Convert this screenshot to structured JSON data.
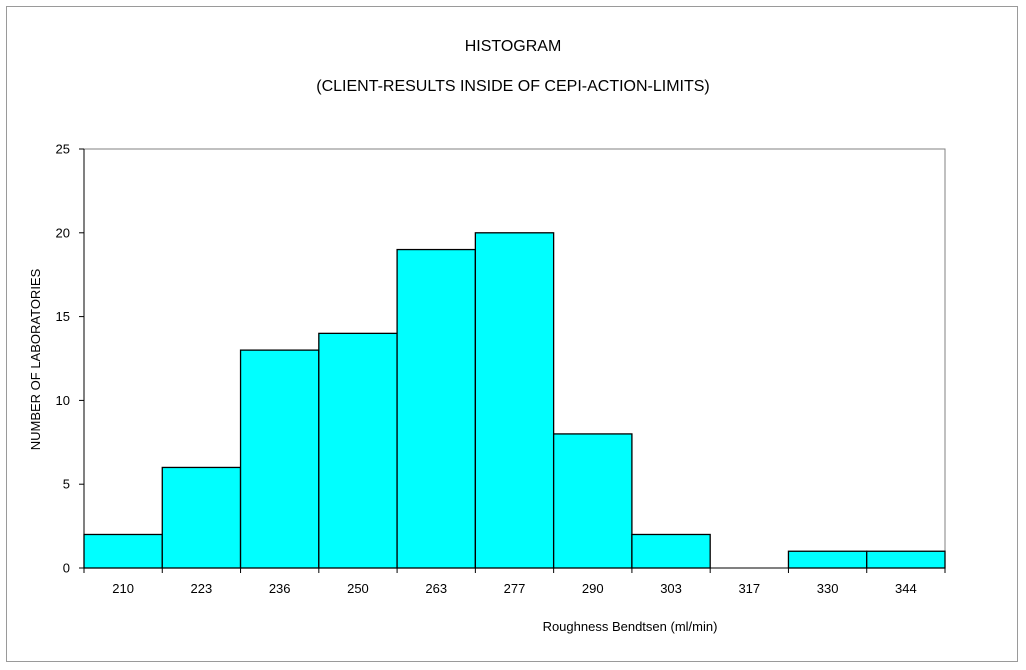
{
  "chart_data": {
    "type": "bar",
    "title": "HISTOGRAM",
    "subtitle": "(CLIENT-RESULTS INSIDE OF CEPI-ACTION-LIMITS)",
    "xlabel": "Roughness Bendtsen (ml/min)",
    "ylabel": "NUMBER OF LABORATORIES",
    "categories": [
      "210",
      "223",
      "236",
      "250",
      "263",
      "277",
      "290",
      "303",
      "317",
      "330",
      "344"
    ],
    "values": [
      2,
      6,
      13,
      14,
      19,
      20,
      8,
      2,
      0,
      1,
      1
    ],
    "ylim": [
      0,
      25
    ],
    "yticks": [
      0,
      5,
      10,
      15,
      20,
      25
    ],
    "grid": false,
    "bar_color": "#00ffff",
    "bar_edge_color": "#000000"
  }
}
